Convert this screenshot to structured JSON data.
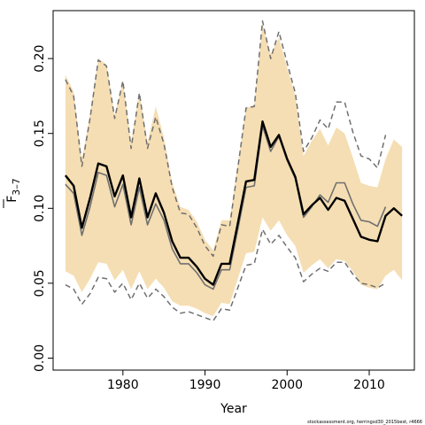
{
  "chart_data": {
    "type": "line",
    "xlabel": "Year",
    "ylabel_main": "F",
    "ylabel_sub": "3–7",
    "xlim": [
      1971.5,
      2015.5
    ],
    "ylim": [
      -0.008,
      0.232
    ],
    "xticks": [
      1980,
      1990,
      2000,
      2010
    ],
    "yticks": [
      0.0,
      0.05,
      0.1,
      0.15,
      0.2
    ],
    "ytick_labels": [
      "0.00",
      "0.05",
      "0.10",
      "0.15",
      "0.20"
    ],
    "footer": "stockassessment.org, herringsd30_2015best, r4666",
    "colors": {
      "band": "#f5deb3",
      "main": "#000000",
      "secondary": "#707070",
      "dashed": "#707070"
    },
    "x": [
      1973,
      1974,
      1975,
      1976,
      1977,
      1978,
      1979,
      1980,
      1981,
      1982,
      1983,
      1984,
      1985,
      1986,
      1987,
      1988,
      1989,
      1990,
      1991,
      1992,
      1993,
      1994,
      1995,
      1996,
      1997,
      1998,
      1999,
      2000,
      2001,
      2002,
      2003,
      2004,
      2005,
      2006,
      2007,
      2008,
      2009,
      2010,
      2011,
      2012,
      2013,
      2014
    ],
    "series": [
      {
        "role": "current estimate",
        "values": [
          0.122,
          0.115,
          0.087,
          0.107,
          0.13,
          0.128,
          0.108,
          0.122,
          0.094,
          0.12,
          0.094,
          0.11,
          0.097,
          0.078,
          0.067,
          0.067,
          0.061,
          0.053,
          0.049,
          0.063,
          0.063,
          0.09,
          0.118,
          0.119,
          0.158,
          0.141,
          0.149,
          0.133,
          0.121,
          0.096,
          0.102,
          0.107,
          0.099,
          0.107,
          0.105,
          0.093,
          0.081,
          0.079,
          0.078,
          0.095,
          0.1,
          0.095
        ]
      },
      {
        "role": "previous estimate",
        "values": [
          0.116,
          0.11,
          0.082,
          0.101,
          0.124,
          0.122,
          0.101,
          0.116,
          0.089,
          0.114,
          0.089,
          0.103,
          0.092,
          0.073,
          0.063,
          0.063,
          0.057,
          0.049,
          0.046,
          0.059,
          0.059,
          0.086,
          0.114,
          0.115,
          0.155,
          0.138,
          0.148,
          0.132,
          0.12,
          0.094,
          0.101,
          0.109,
          0.104,
          0.117,
          0.117,
          0.103,
          0.092,
          0.091,
          0.088,
          0.101,
          null,
          null
        ]
      },
      {
        "role": "previous upper bound",
        "values": [
          0.186,
          0.175,
          0.128,
          0.16,
          0.199,
          0.195,
          0.16,
          0.185,
          0.14,
          0.177,
          0.14,
          0.161,
          0.143,
          0.114,
          0.097,
          0.096,
          0.087,
          0.075,
          0.068,
          0.089,
          0.088,
          0.127,
          0.167,
          0.168,
          0.225,
          0.2,
          0.218,
          0.197,
          0.177,
          0.138,
          0.147,
          0.159,
          0.153,
          0.171,
          0.171,
          0.151,
          0.135,
          0.133,
          0.127,
          0.149,
          null,
          null
        ]
      },
      {
        "role": "previous lower bound",
        "values": [
          0.049,
          0.046,
          0.036,
          0.043,
          0.054,
          0.053,
          0.044,
          0.05,
          0.039,
          0.05,
          0.04,
          0.046,
          0.041,
          0.034,
          0.03,
          0.031,
          0.029,
          0.027,
          0.025,
          0.033,
          0.032,
          0.047,
          0.062,
          0.063,
          0.086,
          0.076,
          0.082,
          0.074,
          0.067,
          0.051,
          0.056,
          0.06,
          0.058,
          0.064,
          0.064,
          0.056,
          0.05,
          0.049,
          0.047,
          0.05,
          null,
          null
        ]
      }
    ],
    "band": {
      "upper": [
        0.189,
        0.178,
        0.132,
        0.163,
        0.2,
        0.196,
        0.162,
        0.185,
        0.144,
        0.178,
        0.144,
        0.168,
        0.147,
        0.117,
        0.101,
        0.099,
        0.091,
        0.079,
        0.072,
        0.092,
        0.092,
        0.13,
        0.167,
        0.169,
        0.223,
        0.203,
        0.214,
        0.194,
        0.175,
        0.135,
        0.145,
        0.153,
        0.142,
        0.154,
        0.15,
        0.134,
        0.117,
        0.115,
        0.114,
        0.133,
        0.146,
        0.141
      ],
      "lower": [
        0.058,
        0.055,
        0.044,
        0.053,
        0.064,
        0.063,
        0.052,
        0.059,
        0.046,
        0.058,
        0.046,
        0.053,
        0.047,
        0.038,
        0.035,
        0.035,
        0.033,
        0.03,
        0.028,
        0.037,
        0.036,
        0.053,
        0.07,
        0.071,
        0.094,
        0.085,
        0.092,
        0.082,
        0.075,
        0.057,
        0.062,
        0.066,
        0.06,
        0.066,
        0.065,
        0.058,
        0.049,
        0.047,
        0.046,
        0.055,
        0.059,
        0.052
      ]
    }
  }
}
